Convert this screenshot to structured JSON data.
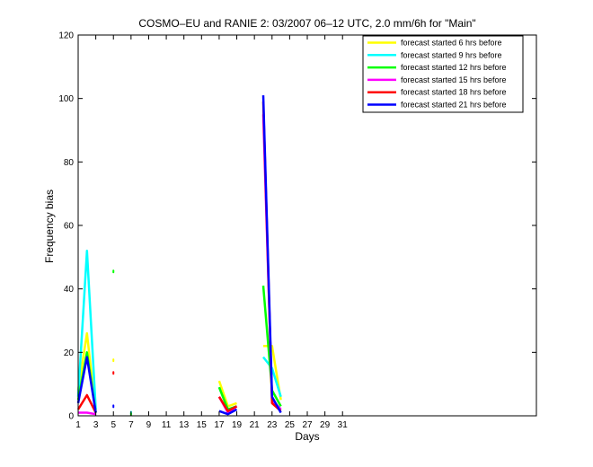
{
  "chart_data": {
    "type": "line",
    "title": "COSMO–EU and RANIE 2: 03/2007 06–12 UTC, 2.0 mm/6h for \"Main\"",
    "xlabel": "Days",
    "ylabel": "Frequency bias",
    "xlim": [
      1,
      53
    ],
    "ylim": [
      0,
      120
    ],
    "xticks": [
      1,
      3,
      5,
      7,
      9,
      11,
      13,
      15,
      17,
      19,
      21,
      23,
      25,
      27,
      29,
      31
    ],
    "yticks": [
      0,
      20,
      40,
      60,
      80,
      100,
      120
    ],
    "grid": false,
    "legend_position": "top-right",
    "series": [
      {
        "name": "forecast started 6 hrs before",
        "color": "#ffff00",
        "segments": [
          [
            [
              1,
              8
            ],
            [
              2,
              26
            ],
            [
              3,
              1
            ]
          ],
          [
            [
              5,
              17.5
            ]
          ],
          [
            [
              17,
              11
            ],
            [
              18,
              3
            ],
            [
              19,
              4
            ]
          ],
          [
            [
              22,
              22
            ],
            [
              23,
              22
            ],
            [
              24,
              5
            ]
          ]
        ]
      },
      {
        "name": "forecast started 9 hrs before",
        "color": "#00ffff",
        "segments": [
          [
            [
              1,
              6
            ],
            [
              2,
              52
            ],
            [
              3,
              2
            ]
          ],
          [
            [
              7,
              1
            ]
          ],
          [
            [
              17,
              9
            ],
            [
              18,
              2
            ],
            [
              19,
              3
            ]
          ],
          [
            [
              22,
              18.5
            ],
            [
              23,
              15
            ],
            [
              24,
              6
            ]
          ]
        ]
      },
      {
        "name": "forecast started 12 hrs before",
        "color": "#00ff00",
        "segments": [
          [
            [
              1,
              5
            ],
            [
              2,
              20
            ],
            [
              3,
              1
            ]
          ],
          [
            [
              5,
              45.5
            ]
          ],
          [
            [
              7,
              0.5
            ]
          ],
          [
            [
              17,
              9
            ],
            [
              18,
              2
            ],
            [
              19,
              3
            ]
          ],
          [
            [
              22,
              41
            ],
            [
              23,
              8
            ],
            [
              24,
              3
            ]
          ]
        ]
      },
      {
        "name": "forecast started 15 hrs before",
        "color": "#ff00ff",
        "segments": [
          [
            [
              1,
              1
            ],
            [
              2,
              1
            ],
            [
              3,
              0.5
            ]
          ],
          [
            [
              17,
              6
            ],
            [
              18,
              1
            ],
            [
              19,
              3
            ]
          ],
          [
            [
              22,
              95
            ],
            [
              23,
              5
            ],
            [
              24,
              2
            ]
          ]
        ]
      },
      {
        "name": "forecast started 18 hrs before",
        "color": "#ff0000",
        "segments": [
          [
            [
              1,
              2
            ],
            [
              2,
              6.5
            ],
            [
              3,
              1
            ]
          ],
          [
            [
              5,
              13.5
            ]
          ],
          [
            [
              17,
              6
            ],
            [
              18,
              1.5
            ],
            [
              19,
              3
            ]
          ],
          [
            [
              22,
              99
            ],
            [
              23,
              4
            ],
            [
              24,
              1.5
            ]
          ]
        ]
      },
      {
        "name": "forecast started 21 hrs before",
        "color": "#0000ff",
        "segments": [
          [
            [
              1,
              4
            ],
            [
              2,
              18.5
            ],
            [
              3,
              1
            ]
          ],
          [
            [
              5,
              3
            ]
          ],
          [
            [
              17,
              1.5
            ],
            [
              18,
              0.5
            ],
            [
              19,
              2
            ]
          ],
          [
            [
              22,
              101
            ],
            [
              23,
              6
            ],
            [
              24,
              1
            ]
          ]
        ]
      }
    ]
  }
}
